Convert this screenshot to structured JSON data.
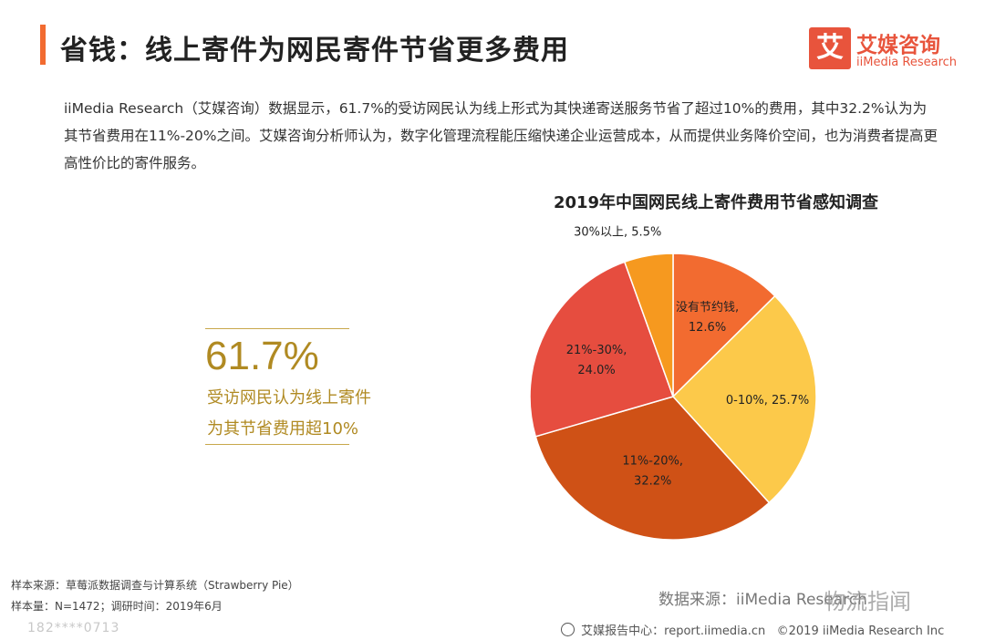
{
  "header": {
    "title": "省钱：线上寄件为网民寄件节省更多费用",
    "logo_char": "艾",
    "logo_cn": "艾媒咨询",
    "logo_en": "iiMedia Research"
  },
  "description": "iiMedia Research（艾媒咨询）数据显示，61.7%的受访网民认为线上形式为其快递寄送服务节省了超过10%的费用，其中32.2%认为为其节省费用在11%-20%之间。艾媒咨询分析师认为，数字化管理流程能压缩快递企业运营成本，从而提供业务降价空间，也为消费者提高更高性价比的寄件服务。",
  "highlight": {
    "value": "61.7%",
    "line1": "受访网民认为线上寄件",
    "line2": "为其节省费用超10%"
  },
  "chart_data": {
    "type": "pie",
    "title": "2019年中国网民线上寄件费用节省感知调查",
    "start": "12 o'clock, clockwise",
    "slices": [
      {
        "label": "没有节约钱",
        "value": 12.6,
        "value_text": "12.6%",
        "color": "#f26b30"
      },
      {
        "label": "0-10%",
        "value": 25.7,
        "value_text": "25.7%",
        "color": "#fcc94a"
      },
      {
        "label": "11%-20%",
        "value": 32.2,
        "value_text": "32.2%",
        "color": "#cf5116"
      },
      {
        "label": "21%-30%",
        "value": 24.0,
        "value_text": "24.0%",
        "color": "#e64d3f"
      },
      {
        "label": "30%以上",
        "value": 5.5,
        "value_text": "5.5%",
        "color": "#f6991f"
      }
    ]
  },
  "footer": {
    "sample_source": "样本来源：草莓派数据调查与计算系统（Strawberry Pie）",
    "sample_size": "样本量：N=1472；调研时间：2019年6月",
    "data_source": "数据来源：iiMedia Research",
    "watermark": "物流指闻",
    "report_center": "艾媒报告中心：report.iimedia.cn",
    "copyright": "©2019  iiMedia Research  Inc",
    "left_watermark": "182****0713"
  }
}
